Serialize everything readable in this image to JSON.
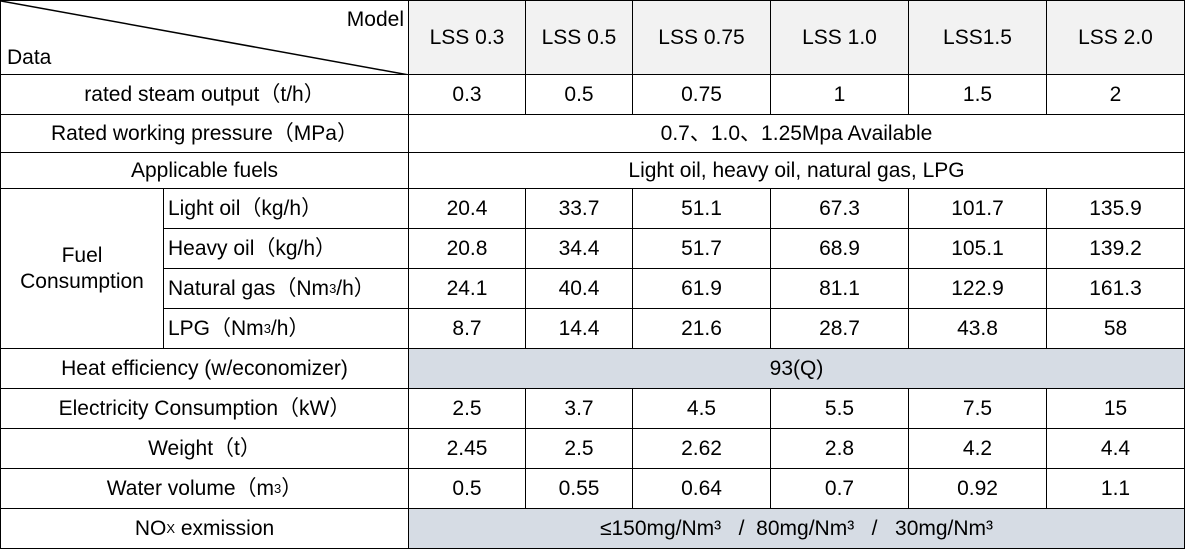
{
  "header": {
    "model_label": "Model",
    "data_label": "Data",
    "models": [
      "LSS 0.3",
      "LSS 0.5",
      "LSS 0.75",
      "LSS 1.0",
      "LSS1.5",
      "LSS 2.0"
    ]
  },
  "rows": [
    {
      "label": [
        "rated steam output（t/h）"
      ],
      "values": [
        0.3,
        0.5,
        0.75,
        1,
        1.5,
        2
      ]
    },
    {
      "label": [
        "Rated working pressure（MPa）"
      ],
      "span": "0.7、1.0、1.25Mpa Available"
    },
    {
      "label": [
        "Applicable fuels"
      ],
      "span": "Light oil, heavy oil, natural gas, LPG"
    },
    {
      "group": [
        "Fuel",
        "Consumption"
      ],
      "subrows": [
        {
          "label": [
            "Light oil（kg/h）"
          ],
          "values": [
            20.4,
            33.7,
            51.1,
            67.3,
            101.7,
            135.9
          ]
        },
        {
          "label": [
            "Heavy oil（kg/h）"
          ],
          "values": [
            20.8,
            34.4,
            51.7,
            68.9,
            105.1,
            139.2
          ]
        },
        {
          "label": [
            "Natural gas（Nm",
            {
              "sup": "3"
            },
            "/h）"
          ],
          "values": [
            24.1,
            40.4,
            61.9,
            81.1,
            122.9,
            161.3
          ]
        },
        {
          "label": [
            "LPG（Nm",
            {
              "sup": "3"
            },
            "/h）"
          ],
          "values": [
            8.7,
            14.4,
            21.6,
            28.7,
            43.8,
            58
          ]
        }
      ]
    },
    {
      "label": [
        "Heat efficiency (w/economizer)"
      ],
      "span": "93(Q)",
      "shaded": true
    },
    {
      "label": [
        "Electricity Consumption（kW）"
      ],
      "values": [
        2.5,
        3.7,
        4.5,
        5.5,
        7.5,
        15
      ]
    },
    {
      "label": [
        "Weight（t）"
      ],
      "values": [
        2.45,
        2.5,
        2.62,
        2.8,
        4.2,
        4.4
      ]
    },
    {
      "label": [
        "Water volume（m",
        {
          "sup": "3"
        },
        "）"
      ],
      "values": [
        0.5,
        0.55,
        0.64,
        0.7,
        0.92,
        1.1
      ]
    },
    {
      "label": [
        "NO",
        {
          "sub": "X"
        },
        " exmission"
      ],
      "span": "≤150mg/Nm³   /  80mg/Nm³   /   30mg/Nm³",
      "shaded": true
    }
  ]
}
